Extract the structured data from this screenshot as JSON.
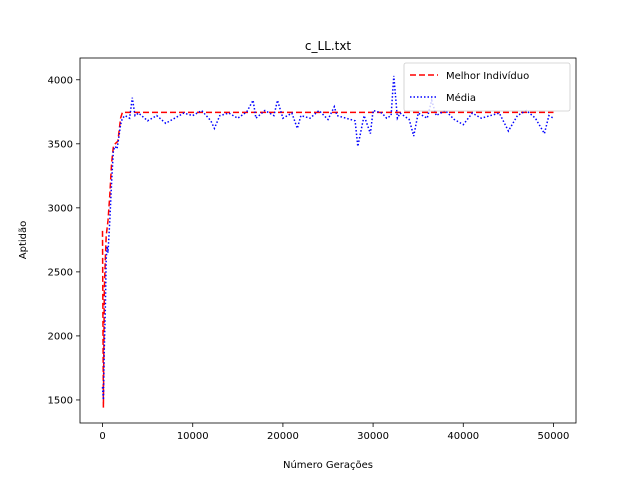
{
  "chart_data": {
    "type": "line",
    "title": "c_LL.txt",
    "xlabel": "Número Gerações",
    "ylabel": "Aptidão",
    "xlim": [
      -2500,
      52500
    ],
    "ylim": [
      1320,
      4170
    ],
    "xticks": [
      0,
      10000,
      20000,
      30000,
      40000,
      50000
    ],
    "yticks": [
      1500,
      2000,
      2500,
      3000,
      3500,
      4000
    ],
    "grid": false,
    "legend_position": "top-right",
    "series": [
      {
        "name": "Melhor Indivíduo",
        "color": "#ff0000",
        "style": "dashed",
        "x": [
          0,
          100,
          200,
          300,
          400,
          600,
          800,
          1000,
          1200,
          1400,
          1700,
          2000,
          2200,
          50000
        ],
        "y": [
          2820,
          1440,
          2350,
          2600,
          2780,
          2900,
          3100,
          3350,
          3480,
          3500,
          3520,
          3700,
          3745,
          3745
        ]
      },
      {
        "name": "Média",
        "color": "#0000ff",
        "style": "dotted",
        "x": [
          0,
          100,
          200,
          300,
          400,
          500,
          600,
          800,
          1000,
          1200,
          1400,
          1600,
          1800,
          2000,
          2200,
          2500,
          3000,
          3300,
          3600,
          4000,
          5000,
          6000,
          7000,
          8000,
          9000,
          10000,
          11000,
          12000,
          12400,
          13000,
          14000,
          15000,
          16000,
          16700,
          17000,
          18000,
          19000,
          19400,
          20000,
          21000,
          21600,
          22000,
          23000,
          24000,
          25000,
          25700,
          26000,
          27000,
          28000,
          28300,
          29000,
          29700,
          30000,
          31000,
          31500,
          32000,
          32300,
          32700,
          33000,
          34000,
          34500,
          35000,
          36000,
          36500,
          37000,
          38000,
          39000,
          40000,
          41000,
          42000,
          43000,
          44000,
          45000,
          46000,
          47000,
          48000,
          49000,
          49500,
          50000
        ],
        "y": [
          1600,
          1500,
          1900,
          2200,
          2600,
          2700,
          2650,
          2900,
          3200,
          3450,
          3480,
          3460,
          3550,
          3650,
          3700,
          3720,
          3700,
          3860,
          3720,
          3740,
          3680,
          3720,
          3660,
          3700,
          3740,
          3720,
          3760,
          3680,
          3620,
          3720,
          3740,
          3700,
          3750,
          3840,
          3700,
          3760,
          3720,
          3840,
          3700,
          3740,
          3620,
          3720,
          3700,
          3760,
          3690,
          3790,
          3720,
          3700,
          3680,
          3480,
          3720,
          3580,
          3760,
          3740,
          3700,
          3720,
          4030,
          3700,
          3740,
          3690,
          3560,
          3740,
          3700,
          3840,
          3720,
          3760,
          3690,
          3650,
          3740,
          3700,
          3720,
          3740,
          3600,
          3720,
          3760,
          3700,
          3580,
          3720,
          3700
        ]
      }
    ]
  }
}
